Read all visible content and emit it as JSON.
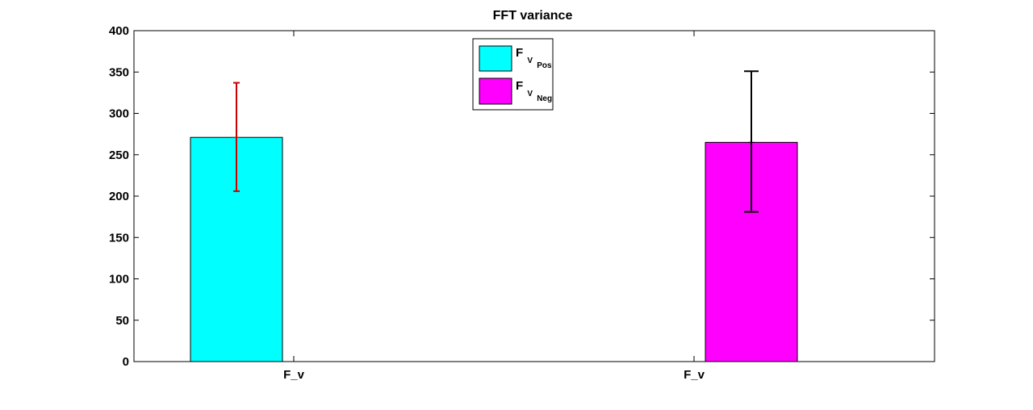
{
  "chart_data": {
    "type": "bar",
    "title": "FFT variance",
    "xlabel": "",
    "ylabel": "",
    "ylim": [
      0,
      400
    ],
    "yticks": [
      0,
      50,
      100,
      150,
      200,
      250,
      300,
      350,
      400
    ],
    "categories": [
      "F_v",
      "F_v"
    ],
    "grid": false,
    "legend_position": "top-center",
    "series": [
      {
        "legend_main": "F",
        "legend_sub1": "V",
        "legend_sub2": "Pos",
        "value": 271,
        "error_low": 206,
        "error_high": 337,
        "color": "#00ffff",
        "error_color": "#cc0000"
      },
      {
        "legend_main": "F",
        "legend_sub1": "V",
        "legend_sub2": "Neg",
        "value": 265,
        "error_low": 181,
        "error_high": 351,
        "color": "#ff00ff",
        "error_color": "#000000"
      }
    ]
  }
}
